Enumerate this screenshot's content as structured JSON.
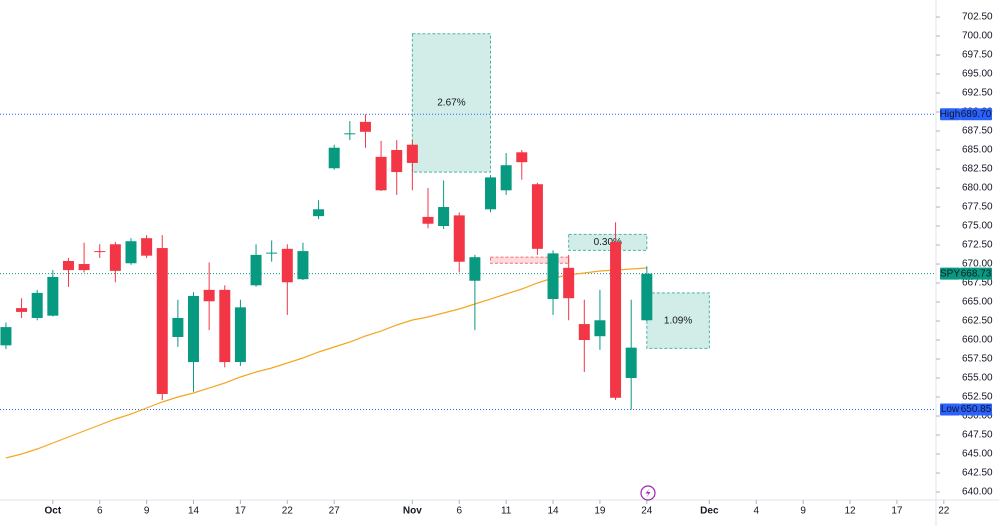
{
  "chart_data": {
    "type": "candlestick",
    "series": [
      {
        "name": "SPY",
        "up_color": "#089981",
        "down_color": "#f23645",
        "open": [
          659.3,
          664.2,
          662.9,
          663.2,
          670.4,
          670.0,
          671.7,
          672.6,
          670.1,
          673.4,
          672.1,
          660.4,
          657.1,
          666.6,
          666.6,
          657.1,
          667.2,
          671.4,
          672.0,
          668.0,
          676.3,
          682.6,
          687.1,
          688.7,
          684.1,
          685.0,
          685.7,
          676.2,
          675.0,
          676.4,
          667.8,
          677.2,
          679.7,
          684.7,
          680.5,
          665.4,
          669.5,
          662.1,
          660.5,
          672.9,
          655.0,
          662.6
        ],
        "high": [
          662.3,
          665.5,
          666.6,
          669.2,
          670.8,
          672.8,
          672.6,
          672.9,
          673.4,
          673.8,
          673.8,
          665.3,
          666.3,
          670.2,
          667.2,
          665.3,
          672.6,
          673.1,
          672.6,
          672.8,
          678.4,
          685.7,
          688.8,
          689.7,
          686.2,
          686.3,
          686.3,
          680.0,
          681.0,
          676.8,
          671.2,
          681.7,
          684.6,
          685.0,
          680.7,
          671.8,
          671.2,
          665.3,
          666.6,
          675.5,
          665.3,
          669.7
        ],
        "low": [
          658.8,
          662.9,
          662.6,
          663.1,
          667.0,
          668.9,
          670.8,
          667.6,
          669.9,
          670.8,
          652.1,
          659.1,
          653.2,
          661.3,
          656.4,
          656.6,
          667.0,
          670.3,
          663.3,
          667.9,
          675.9,
          682.4,
          686.3,
          685.3,
          679.6,
          679.1,
          679.7,
          674.7,
          674.6,
          668.9,
          661.3,
          676.8,
          679.1,
          681.1,
          671.2,
          663.3,
          662.6,
          655.8,
          658.7,
          652.1,
          650.85,
          662.5
        ],
        "close": [
          661.7,
          663.7,
          666.2,
          668.3,
          669.2,
          669.2,
          671.6,
          669.1,
          673.0,
          671.1,
          652.9,
          662.9,
          665.8,
          665.1,
          657.1,
          664.3,
          671.2,
          671.5,
          667.6,
          671.7,
          677.2,
          685.3,
          687.2,
          687.4,
          679.7,
          682.1,
          683.3,
          675.3,
          677.5,
          670.3,
          670.9,
          681.4,
          683.0,
          683.4,
          672.0,
          671.4,
          665.5,
          660.0,
          662.6,
          652.4,
          659.0,
          668.73
        ]
      }
    ],
    "ma": {
      "color": "#f5a623",
      "values": [
        644.47,
        645.0,
        645.66,
        646.45,
        647.24,
        648.03,
        648.82,
        649.61,
        650.26,
        651.05,
        651.84,
        652.5,
        653.03,
        653.68,
        654.34,
        655.13,
        655.79,
        656.32,
        656.97,
        657.63,
        658.42,
        659.08,
        659.74,
        660.53,
        661.18,
        661.97,
        662.63,
        663.03,
        663.55,
        664.08,
        664.74,
        665.39,
        666.05,
        666.71,
        667.5,
        668.16,
        668.55,
        668.82,
        669.08,
        669.21,
        669.34,
        669.47
      ]
    },
    "xlim": [
      -0.38,
      63.53
    ],
    "ylim": [
      638.95,
      704.74
    ],
    "grid": false,
    "xticks": [
      {
        "value": 3,
        "label": "Oct"
      },
      {
        "value": 6,
        "label": "6"
      },
      {
        "value": 9,
        "label": "9"
      },
      {
        "value": 12,
        "label": "14"
      },
      {
        "value": 15,
        "label": "17"
      },
      {
        "value": 18,
        "label": "22"
      },
      {
        "value": 21,
        "label": "27"
      },
      {
        "value": 26,
        "label": "Nov"
      },
      {
        "value": 29,
        "label": "6"
      },
      {
        "value": 32,
        "label": "11"
      },
      {
        "value": 35,
        "label": "14"
      },
      {
        "value": 38,
        "label": "19"
      },
      {
        "value": 41,
        "label": "24"
      },
      {
        "value": 45,
        "label": "Dec"
      },
      {
        "value": 48,
        "label": "4"
      },
      {
        "value": 51,
        "label": "9"
      },
      {
        "value": 54,
        "label": "12"
      },
      {
        "value": 57,
        "label": "17"
      },
      {
        "value": 60,
        "label": "22"
      }
    ],
    "yticks": [
      {
        "value": 640,
        "label": "640.00"
      },
      {
        "value": 642.5,
        "label": "642.50"
      },
      {
        "value": 645,
        "label": "645.00"
      },
      {
        "value": 647.5,
        "label": "647.50"
      },
      {
        "value": 650,
        "label": "650.00"
      },
      {
        "value": 652.5,
        "label": "652.50"
      },
      {
        "value": 655,
        "label": "655.00"
      },
      {
        "value": 657.5,
        "label": "657.50"
      },
      {
        "value": 660,
        "label": "660.00"
      },
      {
        "value": 662.5,
        "label": "662.50"
      },
      {
        "value": 665,
        "label": "665.00"
      },
      {
        "value": 667.5,
        "label": "667.50"
      },
      {
        "value": 670,
        "label": "670.00"
      },
      {
        "value": 672.5,
        "label": "672.50"
      },
      {
        "value": 675,
        "label": "675.00"
      },
      {
        "value": 677.5,
        "label": "677.50"
      },
      {
        "value": 680,
        "label": "680.00"
      },
      {
        "value": 682.5,
        "label": "682.50"
      },
      {
        "value": 685,
        "label": "685.00"
      },
      {
        "value": 687.5,
        "label": "687.50"
      },
      {
        "value": 690,
        "label": "690.00"
      },
      {
        "value": 692.5,
        "label": "692.50"
      },
      {
        "value": 695,
        "label": "695.00"
      },
      {
        "value": 697.5,
        "label": "697.50"
      },
      {
        "value": 700,
        "label": "700.00"
      },
      {
        "value": 702.5,
        "label": "702.50"
      }
    ],
    "price_labels": [
      {
        "name": "High",
        "value": 689.7,
        "label": "689.70",
        "color": "#2962ff",
        "line_color": "#2962ff"
      },
      {
        "name": "SPY",
        "value": 668.73,
        "label": "668.73",
        "color": "#089981",
        "line_color": "#089981"
      },
      {
        "name": "Low",
        "value": 650.85,
        "label": "650.85",
        "color": "#2962ff",
        "line_color": "#2962ff"
      }
    ],
    "annotations": [
      {
        "label": "2.67%",
        "x": [
          26,
          31
        ],
        "y": [
          682.1,
          700.3
        ],
        "color": "#089981",
        "size": 22
      },
      {
        "label": "0.30%",
        "x": [
          36,
          41
        ],
        "y": [
          671.8,
          673.9
        ],
        "color": "#089981",
        "size": 9
      },
      {
        "x": [
          31,
          36
        ],
        "y": [
          670.1,
          670.9
        ],
        "color": "#f23645"
      },
      {
        "label": "1.09%",
        "x": [
          41,
          45
        ],
        "y": [
          658.9,
          666.2
        ],
        "color": "#089981",
        "size": 18
      }
    ]
  }
}
